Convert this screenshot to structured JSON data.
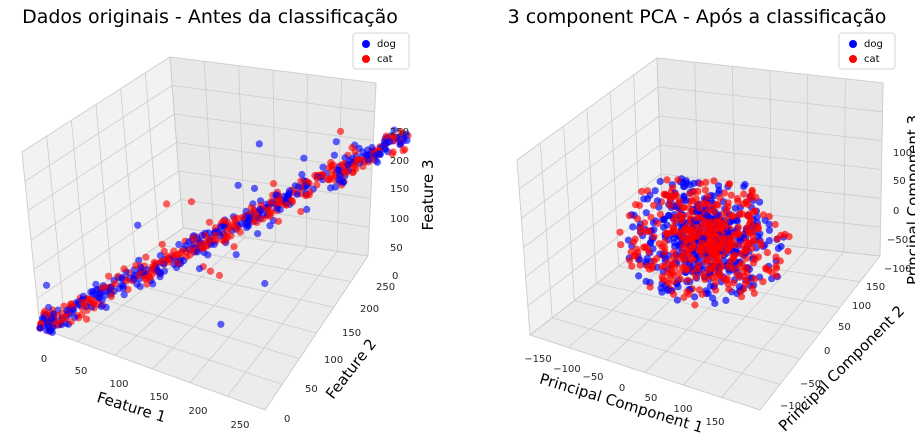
{
  "colors": {
    "dog": "#0000ff",
    "cat": "#ff0000",
    "pane": "#f2f2f2",
    "grid": "#cccccc"
  },
  "chart_data": [
    {
      "type": "scatter",
      "projection": "3d",
      "title": "Dados originais - Antes da classificação",
      "xlabel": "Feature 1",
      "ylabel": "Feature 2",
      "zlabel": "Feature 3",
      "xlim": [
        0,
        255
      ],
      "ylim": [
        0,
        255
      ],
      "zlim": [
        0,
        255
      ],
      "xticks": [
        "0",
        "50",
        "100",
        "150",
        "200",
        "250"
      ],
      "yticks": [
        "0",
        "50",
        "100",
        "150",
        "200",
        "250"
      ],
      "zticks": [
        "0",
        "50",
        "100",
        "150",
        "200",
        "250"
      ],
      "grid": true,
      "legend": "top-right",
      "series": [
        {
          "name": "dog",
          "color": "#0000ff",
          "shape": "diagonal cluster along x≈y≈z, 0–255, with scattered outliers",
          "approx_points": 700
        },
        {
          "name": "cat",
          "color": "#ff0000",
          "shape": "diagonal cluster along x≈y≈z, 0–255, with scattered outliers",
          "approx_points": 700
        }
      ]
    },
    {
      "type": "scatter",
      "projection": "3d",
      "title": "3 component PCA - Após a classificação",
      "xlabel": "Principal Component 1",
      "ylabel": "Principal Component 2",
      "zlabel": "Principal Component 3",
      "xlim": [
        -175,
        200
      ],
      "ylim": [
        -150,
        175
      ],
      "zlim": [
        -130,
        140
      ],
      "xticks": [
        "−150",
        "−100",
        "−50",
        "0",
        "50",
        "100",
        "150"
      ],
      "yticks": [
        "−100",
        "−50",
        "0",
        "50",
        "100",
        "150"
      ],
      "zticks": [
        "−100",
        "−50",
        "0",
        "50",
        "100"
      ],
      "grid": true,
      "legend": "top-right",
      "series": [
        {
          "name": "dog",
          "color": "#0000ff",
          "shape": "roughly spherical cloud centred at origin, radius ≈ 150",
          "approx_points": 700
        },
        {
          "name": "cat",
          "color": "#ff0000",
          "shape": "roughly spherical cloud centred at origin, radius ≈ 150",
          "approx_points": 700
        }
      ]
    }
  ]
}
